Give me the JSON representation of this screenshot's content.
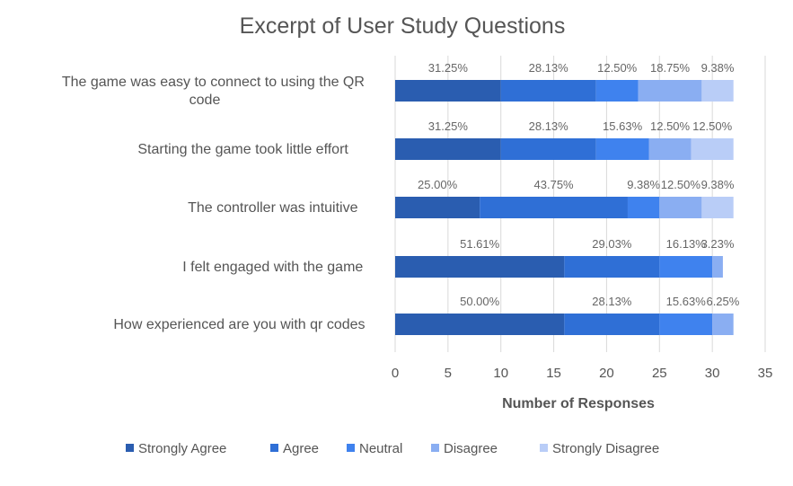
{
  "chart_data": {
    "type": "bar",
    "orientation": "horizontal",
    "stacked": true,
    "title": "Excerpt of User Study Questions",
    "xlabel": "Number of Responses",
    "ylabel": "",
    "xlim": [
      0,
      35
    ],
    "xticks": [
      "0",
      "5",
      "10",
      "15",
      "20",
      "25",
      "30",
      "35"
    ],
    "grid": true,
    "legend_position": "bottom",
    "categories": [
      "The game was easy to connect to using the QR code",
      "Starting the game took little effort",
      "The controller was intuitive",
      "I felt engaged with the game",
      "How experienced are you with qr codes"
    ],
    "series": [
      {
        "name": "Strongly Agree",
        "color": "#2a5db0",
        "values": [
          10,
          10,
          8,
          16,
          16
        ],
        "labels": [
          "31.25%",
          "31.25%",
          "25.00%",
          "51.61%",
          "50.00%"
        ]
      },
      {
        "name": "Agree",
        "color": "#2f6fd6",
        "values": [
          9,
          9,
          14,
          9,
          9
        ],
        "labels": [
          "28.13%",
          "28.13%",
          "43.75%",
          "29.03%",
          "28.13%"
        ]
      },
      {
        "name": "Neutral",
        "color": "#3f82ee",
        "values": [
          4,
          5,
          3,
          5,
          5
        ],
        "labels": [
          "12.50%",
          "15.63%",
          "9.38%",
          "16.13%",
          "15.63%"
        ]
      },
      {
        "name": "Disagree",
        "color": "#8aaef2",
        "values": [
          6,
          4,
          4,
          1,
          2
        ],
        "labels": [
          "18.75%",
          "12.50%",
          "12.50%",
          "3.23%",
          "6.25%"
        ]
      },
      {
        "name": "Strongly Disagree",
        "color": "#b9cdf7",
        "values": [
          3,
          4,
          3,
          0,
          0
        ],
        "labels": [
          "9.38%",
          "12.50%",
          "9.38%",
          "",
          ""
        ]
      }
    ]
  }
}
